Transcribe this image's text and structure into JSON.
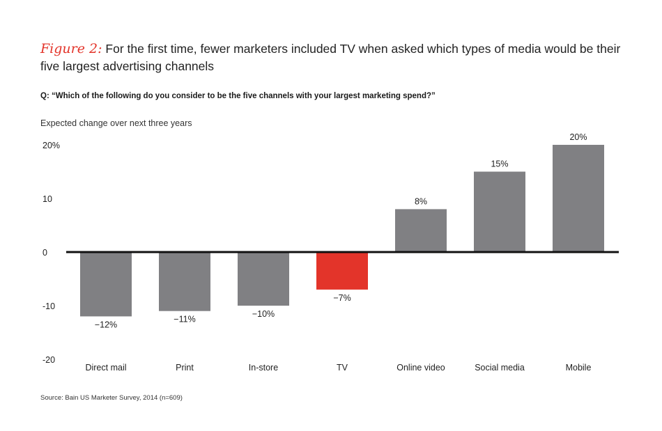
{
  "figure": {
    "label": "Figure 2:",
    "title": "For the first time, fewer marketers included TV when asked which types of media would be their five largest advertising channels",
    "question": "Q: “Which of the following do you consider to be the five channels with your largest marketing spend?”",
    "source": "Source: Bain US Marketer Survey, 2014 (n=609)"
  },
  "chart_data": {
    "type": "bar",
    "title": "",
    "subtitle": "Expected change over next three years",
    "xlabel": "",
    "ylabel": "",
    "categories": [
      "Direct mail",
      "Print",
      "In-store",
      "TV",
      "Online video",
      "Social media",
      "Mobile"
    ],
    "values": [
      -12,
      -11,
      -10,
      -7,
      8,
      15,
      20
    ],
    "data_labels": [
      "−12%",
      "−11%",
      "−10%",
      "−7%",
      "8%",
      "15%",
      "20%"
    ],
    "ylim": [
      -20,
      20
    ],
    "yticks": [
      20,
      10,
      0,
      -10,
      -20
    ],
    "ytick_labels": [
      "20%",
      "10",
      "0",
      "-10",
      "-20"
    ],
    "grid": false,
    "legend": "none",
    "colors": {
      "default_bar": "#808083",
      "highlight_bar": "#e3342a",
      "highlight_category": "TV",
      "zero_line": "#111111"
    }
  }
}
